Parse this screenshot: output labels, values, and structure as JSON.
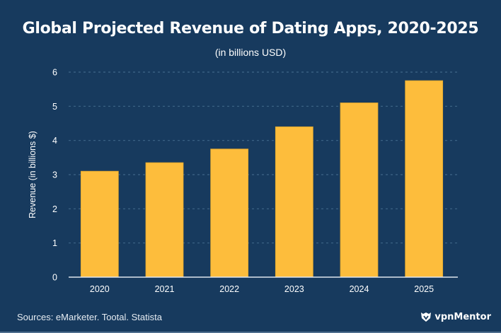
{
  "chart_data": {
    "type": "bar",
    "title": "Global Projected Revenue of Dating Apps, 2020-2025",
    "subtitle": "(in billions USD)",
    "xlabel": "",
    "ylabel": "Revenue (in billions $)",
    "categories": [
      "2020",
      "2021",
      "2022",
      "2023",
      "2024",
      "2025"
    ],
    "values": [
      3.1,
      3.35,
      3.75,
      4.4,
      5.1,
      5.75
    ],
    "ylim": [
      0,
      6
    ],
    "yticks": [
      "0",
      "1",
      "2",
      "3",
      "4",
      "5",
      "6"
    ],
    "grid": true,
    "bar_color": "#fdbd3c",
    "background_color": "#173a5e"
  },
  "footer": {
    "source": "Sources: eMarketer. Tootal. Statista",
    "brand": "vpnMentor"
  }
}
